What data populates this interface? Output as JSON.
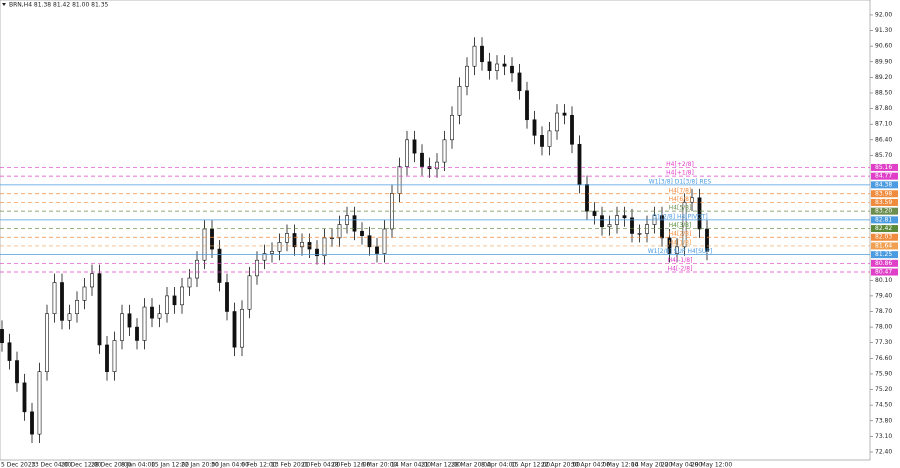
{
  "chart_data": {
    "type": "candlestick",
    "title": "BRN,H4 81.38 81.42 81.00 81.35",
    "categories": [
      "5 Dec 2023",
      null,
      null,
      null,
      "13 Dec 04:00",
      null,
      null,
      null,
      "20 Dec 12:00",
      null,
      null,
      null,
      "28 Dec 20:00",
      null,
      null,
      null,
      "8 Jan 04:00",
      null,
      null,
      null,
      "15 Jan 12:00",
      null,
      null,
      null,
      "22 Jan 20:00",
      null,
      null,
      null,
      "30 Jan 04:00",
      null,
      null,
      null,
      "6 Feb 12:00",
      null,
      null,
      null,
      "13 Feb 20:00",
      null,
      null,
      null,
      "21 Feb 04:00",
      null,
      null,
      null,
      "28 Feb 12:00",
      null,
      null,
      null,
      "6 Mar 20:00",
      null,
      null,
      null,
      "14 Mar 04:00",
      null,
      null,
      null,
      "21 Mar 12:00",
      null,
      null,
      null,
      "28 Mar 20:00",
      null,
      null,
      null,
      "8 Apr 04:00",
      null,
      null,
      null,
      "15 Apr 12:00",
      null,
      null,
      null,
      "22 Apr 20:00",
      null,
      null,
      null,
      "30 Apr 04:00",
      null,
      null,
      null,
      "7 May 12:00",
      null,
      null,
      null,
      "14 May 20:00",
      null,
      null,
      null,
      "22 May 04:00",
      null,
      null,
      null,
      "29 May 12:00",
      null,
      null
    ],
    "open": [
      77.9,
      77.3,
      76.5,
      75.5,
      74.2,
      73.2,
      76.0,
      78.6,
      80.0,
      78.3,
      78.6,
      79.2,
      79.8,
      80.4,
      77.2,
      76.0,
      77.4,
      78.6,
      78.0,
      77.4,
      78.9,
      78.4,
      78.6,
      79.4,
      79.0,
      79.8,
      80.2,
      81.0,
      82.4,
      81.5,
      80.0,
      78.7,
      77.1,
      78.8,
      80.3,
      81.0,
      81.3,
      81.4,
      81.8,
      82.2,
      81.6,
      81.8,
      81.5,
      81.2,
      82.0,
      82.0,
      82.6,
      83.0,
      82.3,
      82.1,
      81.6,
      81.3,
      82.4,
      84.0,
      85.2,
      86.4,
      85.8,
      85.2,
      85.1,
      85.4,
      86.4,
      87.5,
      88.8,
      89.7,
      90.6,
      89.9,
      89.5,
      89.8,
      89.7,
      89.4,
      88.6,
      87.3,
      86.6,
      86.1,
      86.8,
      87.6,
      87.5,
      86.2,
      84.4,
      83.2,
      83.0,
      82.5,
      82.6,
      83.0,
      82.9,
      82.2,
      82.2,
      82.6,
      83.0,
      82.0,
      81.3,
      81.6,
      83.6,
      83.8,
      82.4
    ],
    "high": [
      78.3,
      77.7,
      76.9,
      75.9,
      74.6,
      76.4,
      79.0,
      80.4,
      80.4,
      79.0,
      79.6,
      80.2,
      80.8,
      80.8,
      77.6,
      77.8,
      79.0,
      79.0,
      78.4,
      79.3,
      79.3,
      79.0,
      79.8,
      79.8,
      80.2,
      80.6,
      81.4,
      82.8,
      82.8,
      81.9,
      80.4,
      79.1,
      79.2,
      80.7,
      81.4,
      81.7,
      81.8,
      82.2,
      82.6,
      82.6,
      82.2,
      82.2,
      81.9,
      82.4,
      82.4,
      83.0,
      83.4,
      83.4,
      82.7,
      82.5,
      82.0,
      82.8,
      84.4,
      85.6,
      86.8,
      86.8,
      86.2,
      85.6,
      85.8,
      86.8,
      87.9,
      89.2,
      90.1,
      91.0,
      91.0,
      90.3,
      90.2,
      90.2,
      90.1,
      89.8,
      89.0,
      87.7,
      87.0,
      87.2,
      88.0,
      88.0,
      87.9,
      86.6,
      84.8,
      83.6,
      83.4,
      83.0,
      83.4,
      83.4,
      83.3,
      82.6,
      83.0,
      83.4,
      83.4,
      82.4,
      82.0,
      84.0,
      84.2,
      84.2,
      82.8
    ],
    "low": [
      76.9,
      76.1,
      75.1,
      73.8,
      72.8,
      72.8,
      75.6,
      78.2,
      77.9,
      77.9,
      78.2,
      78.8,
      79.4,
      76.8,
      75.6,
      75.6,
      77.0,
      77.6,
      77.0,
      77.0,
      78.0,
      78.0,
      78.2,
      78.6,
      78.6,
      79.4,
      79.8,
      80.6,
      81.1,
      79.6,
      78.3,
      76.7,
      76.7,
      78.4,
      79.9,
      80.6,
      80.9,
      81.0,
      81.4,
      81.2,
      81.2,
      81.1,
      80.8,
      80.8,
      81.6,
      81.6,
      82.2,
      81.9,
      81.7,
      81.2,
      80.9,
      80.9,
      82.0,
      83.6,
      84.8,
      85.4,
      84.8,
      84.7,
      84.7,
      85.0,
      86.0,
      87.1,
      88.4,
      89.3,
      89.5,
      89.1,
      89.1,
      89.3,
      89.0,
      88.2,
      86.9,
      86.2,
      85.7,
      85.7,
      86.4,
      87.1,
      85.8,
      84.0,
      82.8,
      82.6,
      82.1,
      82.1,
      82.2,
      82.5,
      81.8,
      81.8,
      81.8,
      82.2,
      81.6,
      80.9,
      80.9,
      81.2,
      83.2,
      82.0,
      81.0
    ],
    "close": [
      77.3,
      76.5,
      75.5,
      74.2,
      73.2,
      76.0,
      78.6,
      80.0,
      78.3,
      78.6,
      79.2,
      79.8,
      80.4,
      77.2,
      76.0,
      77.4,
      78.6,
      78.0,
      77.4,
      78.9,
      78.4,
      78.6,
      79.4,
      79.0,
      79.8,
      80.2,
      81.0,
      82.4,
      81.5,
      80.0,
      78.7,
      77.1,
      78.8,
      80.3,
      81.0,
      81.3,
      81.4,
      81.8,
      82.2,
      81.6,
      81.8,
      81.5,
      81.2,
      82.0,
      82.0,
      82.6,
      83.0,
      82.3,
      82.1,
      81.6,
      81.3,
      82.4,
      84.0,
      85.2,
      86.4,
      85.8,
      85.2,
      85.1,
      85.4,
      86.4,
      87.5,
      88.8,
      89.7,
      90.6,
      89.9,
      89.5,
      89.8,
      89.7,
      89.4,
      88.6,
      87.3,
      86.6,
      86.1,
      86.8,
      87.6,
      87.5,
      86.2,
      84.4,
      83.2,
      83.0,
      82.5,
      82.6,
      83.0,
      82.9,
      82.2,
      82.2,
      82.6,
      83.0,
      82.0,
      81.3,
      81.6,
      83.6,
      83.8,
      82.4,
      81.4
    ],
    "color": "#111111",
    "ylim": [
      72.04,
      92.67
    ],
    "yticks": [
      {
        "value": 92.0,
        "label": "92.00"
      },
      {
        "value": 91.3,
        "label": "91.30"
      },
      {
        "value": 90.6,
        "label": "90.60"
      },
      {
        "value": 89.9,
        "label": "89.90"
      },
      {
        "value": 89.2,
        "label": "89.20"
      },
      {
        "value": 88.5,
        "label": "88.50"
      },
      {
        "value": 87.8,
        "label": "87.80"
      },
      {
        "value": 87.1,
        "label": "87.10"
      },
      {
        "value": 86.4,
        "label": "86.40"
      },
      {
        "value": 85.7,
        "label": "85.70"
      },
      {
        "value": 80.1,
        "label": "80.10"
      },
      {
        "value": 79.4,
        "label": "79.40"
      },
      {
        "value": 78.7,
        "label": "78.70"
      },
      {
        "value": 78.0,
        "label": "78.00"
      },
      {
        "value": 77.3,
        "label": "77.30"
      },
      {
        "value": 76.6,
        "label": "76.60"
      },
      {
        "value": 75.9,
        "label": "75.90"
      },
      {
        "value": 75.2,
        "label": "75.20"
      },
      {
        "value": 74.5,
        "label": "74.50"
      },
      {
        "value": 73.8,
        "label": "73.80"
      },
      {
        "value": 73.1,
        "label": "73.10"
      },
      {
        "value": 72.4,
        "label": "72.40"
      }
    ],
    "grid": false,
    "levels": [
      {
        "name": "H4[+2/8]",
        "value": 85.16,
        "label": "85.16",
        "color": "#e040c8",
        "dash": true
      },
      {
        "name": "H4[+1/8]",
        "value": 84.77,
        "label": "84.77",
        "color": "#e040c8",
        "dash": true
      },
      {
        "name": "W1[3/8] D1[3/8] RES",
        "value": 84.38,
        "label": "84.38",
        "color": "#4a9be0",
        "dash": false
      },
      {
        "name": "H4[7/8]",
        "value": 83.98,
        "label": "83.98",
        "color": "#f08a3c",
        "dash": true
      },
      {
        "name": "H4[6/8]",
        "value": 83.59,
        "label": "83.59",
        "color": "#f08a3c",
        "dash": true
      },
      {
        "name": "H4[5/8]",
        "value": 83.2,
        "label": "83.20",
        "color": "#6b8e4e",
        "dash": true
      },
      {
        "name": "D1[2/8] H4[PIVOT]",
        "value": 82.81,
        "label": "82.81",
        "color": "#4a9be0",
        "dash": false
      },
      {
        "name": "H4[3/8]",
        "value": 82.42,
        "label": "82.42",
        "color": "#5a8a3a",
        "dash": true
      },
      {
        "name": "H4[2/8]",
        "value": 82.03,
        "label": "82.03",
        "color": "#f08a3c",
        "dash": true
      },
      {
        "name": "H4[1/8]",
        "value": 81.64,
        "label": "81.64",
        "color": "#f0a050",
        "dash": true
      },
      {
        "name": "W1[2/8] SUP H4[SUP]",
        "value": 81.25,
        "label": "81.25",
        "color": "#4a9be0",
        "dash": false
      },
      {
        "name": "H4[-1/8]",
        "value": 80.86,
        "label": "80.86",
        "color": "#e040c8",
        "dash": true
      },
      {
        "name": "H4[-2/8]",
        "value": 80.47,
        "label": "80.47",
        "color": "#e040c8",
        "dash": true
      }
    ]
  }
}
